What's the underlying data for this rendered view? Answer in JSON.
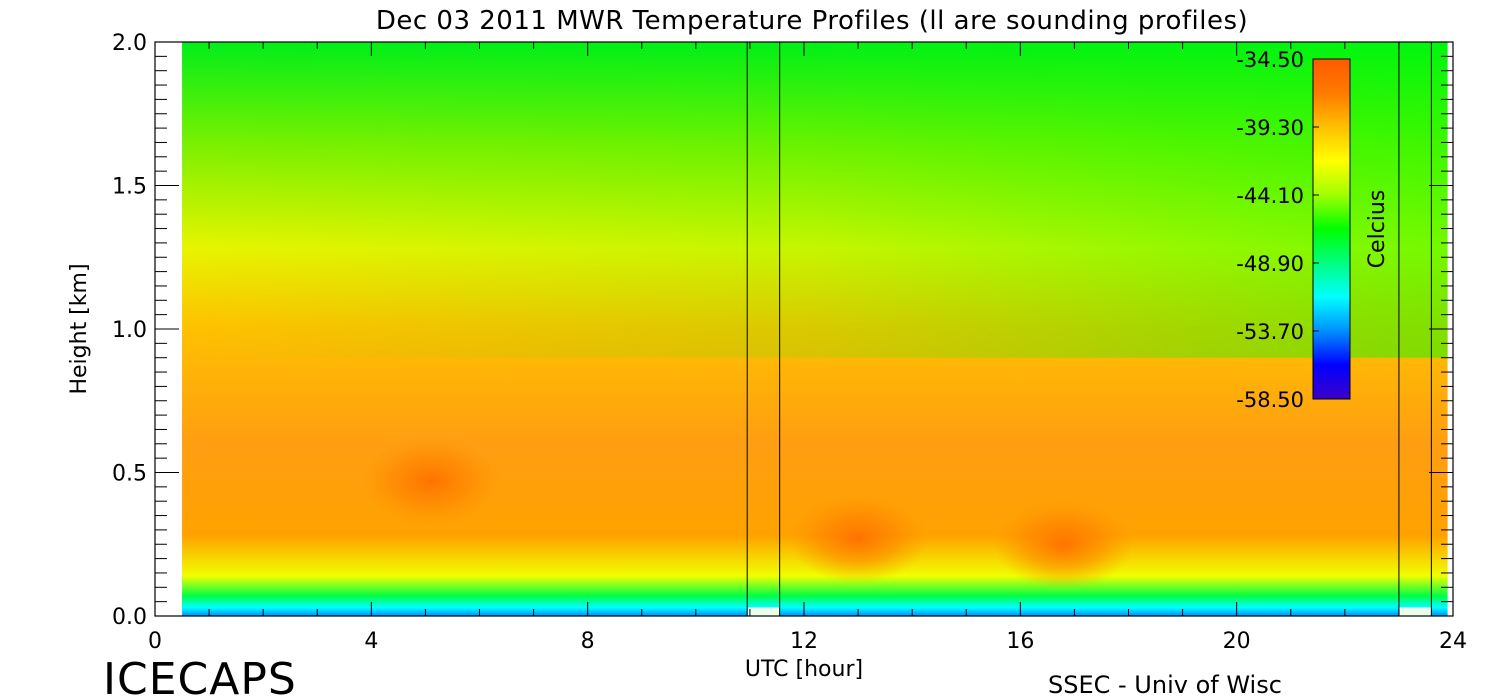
{
  "chart_data": {
    "type": "heatmap",
    "title": "Dec 03 2011 MWR Temperature Profiles (ll are sounding profiles)",
    "xlabel": "UTC [hour]",
    "ylabel": "Height [km]",
    "xlim": [
      0,
      24
    ],
    "ylim": [
      0,
      2.0
    ],
    "x_ticks": [
      "0",
      "4",
      "8",
      "12",
      "16",
      "20",
      "24"
    ],
    "y_ticks": [
      "0.0",
      "0.5",
      "1.0",
      "1.5",
      "2.0"
    ],
    "data_x_range": [
      0.5,
      23.9
    ],
    "sounding_profiles": [
      {
        "x1": 10.95,
        "x2": 11.55
      },
      {
        "x1": 23.0,
        "x2": 23.6
      }
    ],
    "colorbar": {
      "label": "Celcius",
      "ticks": [
        "-34.50",
        "-39.30",
        "-44.10",
        "-48.90",
        "-53.70",
        "-58.50"
      ],
      "range": [
        -58.5,
        -34.5
      ],
      "colors": [
        "#3b00c8",
        "#0000ff",
        "#0090ff",
        "#00ffff",
        "#00ff80",
        "#00ff00",
        "#a0ff00",
        "#ffff00",
        "#ffc000",
        "#ff7a00",
        "#ff5a00"
      ]
    },
    "warm_cores": [
      {
        "x": 5.1,
        "height_km": 0.47,
        "temp_c": -34.8
      },
      {
        "x": 13.0,
        "height_km": 0.27,
        "temp_c": -34.9
      },
      {
        "x": 16.8,
        "height_km": 0.25,
        "temp_c": -34.9
      }
    ]
  },
  "footer": {
    "logo": "ICECAPS",
    "credit": "SSEC - Univ of Wisc"
  }
}
